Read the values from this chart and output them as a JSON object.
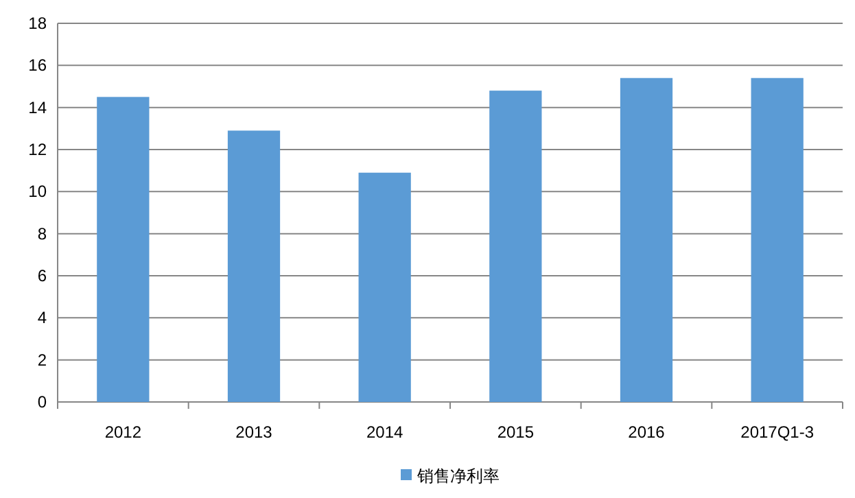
{
  "chart_data": {
    "type": "bar",
    "categories": [
      "2012",
      "2013",
      "2014",
      "2015",
      "2016",
      "2017Q1-3"
    ],
    "series": [
      {
        "name": "销售净利率",
        "color": "#5b9bd5",
        "values": [
          14.5,
          12.9,
          10.9,
          14.8,
          15.4,
          15.4
        ]
      }
    ],
    "ylim": [
      0,
      18
    ],
    "yticks": [
      0,
      2,
      4,
      6,
      8,
      10,
      12,
      14,
      16,
      18
    ],
    "grid": "y",
    "legend": "bottom"
  }
}
